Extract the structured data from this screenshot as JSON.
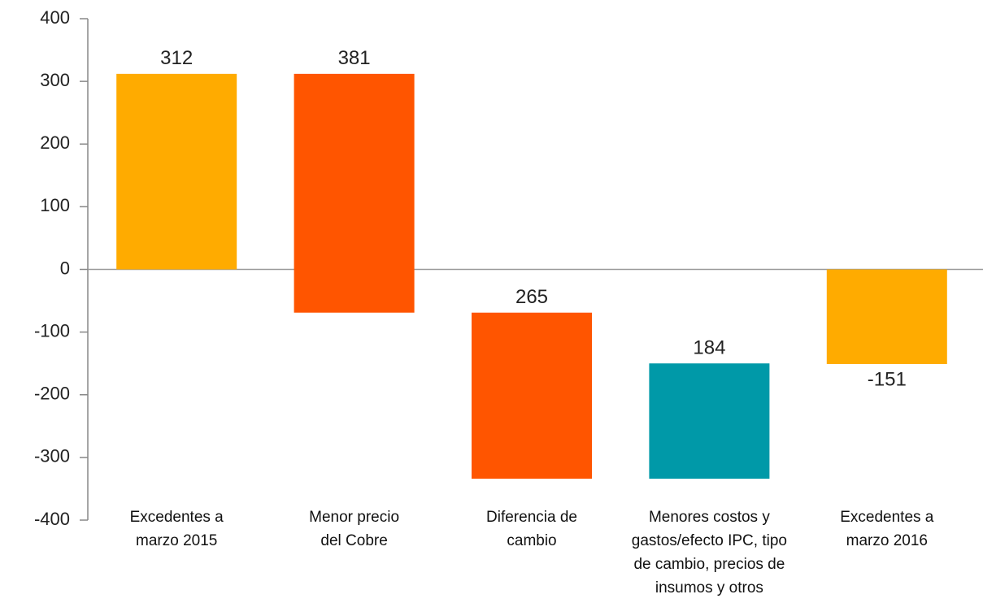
{
  "chart_data": {
    "type": "waterfall",
    "categories": [
      "Excedentes a\nmarzo 2015",
      "Menor precio\ndel Cobre",
      "Diferencia de\ncambio",
      "Menores costos y\ngastos/efecto IPC, tipo\nde cambio, precios de\ninsumos y otros",
      "Excedentes a\nmarzo 2016"
    ],
    "values": [
      312,
      -381,
      -265,
      184,
      -151
    ],
    "value_labels": [
      "312",
      "381",
      "265",
      "184",
      "-151"
    ],
    "measure": [
      "total",
      "relative",
      "relative",
      "relative",
      "total"
    ],
    "colors": [
      "#ffab00",
      "#ff5500",
      "#ff5500",
      "#0099a8",
      "#ffab00"
    ],
    "ylim": [
      -400,
      400
    ],
    "yticks": [
      -400,
      -300,
      -200,
      -100,
      0,
      100,
      200,
      300,
      400
    ]
  }
}
